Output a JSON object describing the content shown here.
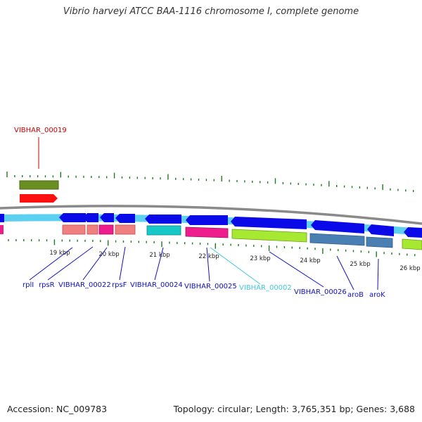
{
  "title": "Vibrio harveyi ATCC BAA-1116 chromosome I, complete genome",
  "footer": {
    "accession": "Accession: NC_009783",
    "topology": "Topology: circular; Length: 3,765,351 bp; Genes: 3,688"
  },
  "colors": {
    "backbone": "#8a8a8a",
    "tick": "#1e7a1e",
    "label_dark": "#1010c0",
    "label_light": "#40c8e0",
    "label_red": "#cc0000",
    "cds_dark_blue": "#0a0ae8",
    "cds_light_blue": "#5cd0f0"
  },
  "scale_labels": [
    "19 kbp",
    "20 kbp",
    "21 kbp",
    "22 kbp",
    "23 kbp",
    "24 kbp",
    "25 kbp",
    "26 kbp"
  ],
  "gene_labels": [
    {
      "text": "VIBHAR_00019",
      "color": "#cc0000"
    },
    {
      "text": "rplI",
      "color": "#1010c0"
    },
    {
      "text": "rpsR",
      "color": "#1010c0"
    },
    {
      "text": "VIBHAR_00022",
      "color": "#1010c0"
    },
    {
      "text": "rpsF",
      "color": "#1010c0"
    },
    {
      "text": "VIBHAR_00024",
      "color": "#1010c0"
    },
    {
      "text": "VIBHAR_00025",
      "color": "#1010c0"
    },
    {
      "text": "VIBHAR_00002",
      "color": "#40c8e0"
    },
    {
      "text": "VIBHAR_00026",
      "color": "#1010c0"
    },
    {
      "text": "aroB",
      "color": "#1010c0"
    },
    {
      "text": "aroK",
      "color": "#1010c0"
    }
  ]
}
